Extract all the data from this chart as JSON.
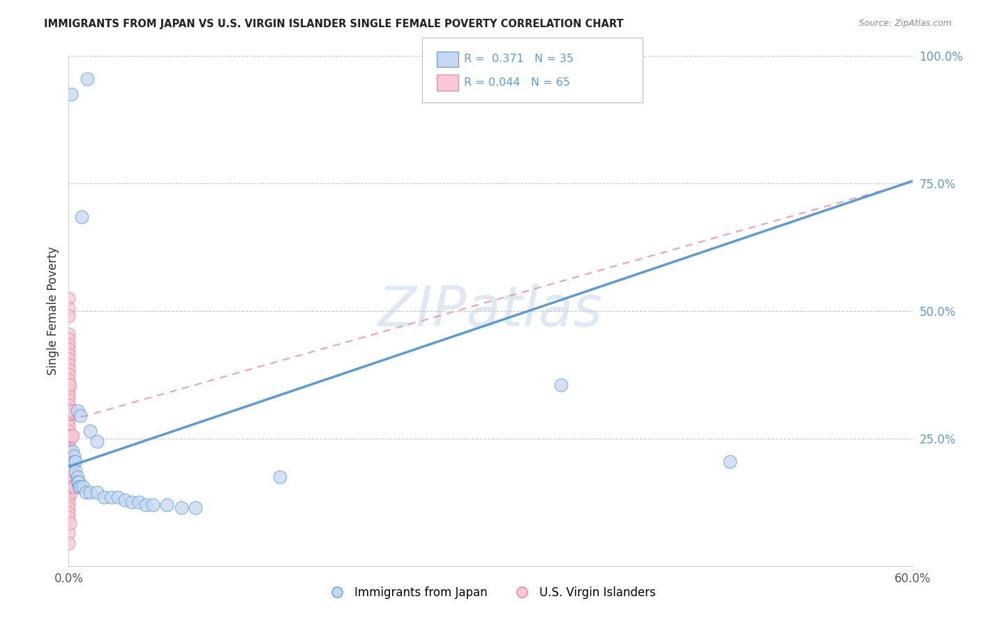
{
  "title": "IMMIGRANTS FROM JAPAN VS U.S. VIRGIN ISLANDER SINGLE FEMALE POVERTY CORRELATION CHART",
  "source": "Source: ZipAtlas.com",
  "ylabel": "Single Female Poverty",
  "xlim": [
    0.0,
    0.6
  ],
  "ylim": [
    0.0,
    1.0
  ],
  "watermark": "ZIPatlas",
  "blue_color": "#aac4e2",
  "pink_color": "#f5a8bc",
  "blue_fill": "#c5d8ef",
  "pink_fill": "#fac8d5",
  "blue_line_color": "#5b9bd5",
  "pink_line_color": "#e8809a",
  "grid_color": "#c8c8c8",
  "background_color": "#ffffff",
  "right_tick_color": "#5b9bd5",
  "blue_slope": 0.933,
  "blue_intercept": 0.195,
  "pink_slope": 0.78,
  "pink_intercept": 0.285,
  "japan_points": [
    [
      0.002,
      0.925
    ],
    [
      0.013,
      0.955
    ],
    [
      0.009,
      0.685
    ],
    [
      0.006,
      0.305
    ],
    [
      0.008,
      0.295
    ],
    [
      0.015,
      0.265
    ],
    [
      0.02,
      0.245
    ],
    [
      0.003,
      0.225
    ],
    [
      0.004,
      0.215
    ],
    [
      0.004,
      0.205
    ],
    [
      0.005,
      0.205
    ],
    [
      0.005,
      0.185
    ],
    [
      0.006,
      0.175
    ],
    [
      0.006,
      0.165
    ],
    [
      0.007,
      0.165
    ],
    [
      0.007,
      0.155
    ],
    [
      0.008,
      0.155
    ],
    [
      0.01,
      0.155
    ],
    [
      0.012,
      0.145
    ],
    [
      0.015,
      0.145
    ],
    [
      0.02,
      0.145
    ],
    [
      0.025,
      0.135
    ],
    [
      0.03,
      0.135
    ],
    [
      0.035,
      0.135
    ],
    [
      0.04,
      0.13
    ],
    [
      0.045,
      0.125
    ],
    [
      0.05,
      0.125
    ],
    [
      0.055,
      0.12
    ],
    [
      0.06,
      0.12
    ],
    [
      0.07,
      0.12
    ],
    [
      0.08,
      0.115
    ],
    [
      0.09,
      0.115
    ],
    [
      0.47,
      0.205
    ],
    [
      0.35,
      0.355
    ],
    [
      0.15,
      0.175
    ]
  ],
  "virgin_points": [
    [
      0.0,
      0.525
    ],
    [
      0.0,
      0.505
    ],
    [
      0.0,
      0.49
    ],
    [
      0.0,
      0.455
    ],
    [
      0.0,
      0.445
    ],
    [
      0.0,
      0.435
    ],
    [
      0.0,
      0.425
    ],
    [
      0.0,
      0.415
    ],
    [
      0.0,
      0.405
    ],
    [
      0.0,
      0.395
    ],
    [
      0.0,
      0.385
    ],
    [
      0.0,
      0.375
    ],
    [
      0.0,
      0.365
    ],
    [
      0.0,
      0.355
    ],
    [
      0.0,
      0.345
    ],
    [
      0.0,
      0.335
    ],
    [
      0.0,
      0.325
    ],
    [
      0.0,
      0.315
    ],
    [
      0.0,
      0.305
    ],
    [
      0.0,
      0.295
    ],
    [
      0.0,
      0.285
    ],
    [
      0.0,
      0.275
    ],
    [
      0.0,
      0.265
    ],
    [
      0.0,
      0.255
    ],
    [
      0.0,
      0.245
    ],
    [
      0.0,
      0.235
    ],
    [
      0.0,
      0.225
    ],
    [
      0.0,
      0.215
    ],
    [
      0.0,
      0.205
    ],
    [
      0.0,
      0.195
    ],
    [
      0.0,
      0.185
    ],
    [
      0.0,
      0.175
    ],
    [
      0.0,
      0.165
    ],
    [
      0.0,
      0.155
    ],
    [
      0.0,
      0.145
    ],
    [
      0.0,
      0.135
    ],
    [
      0.0,
      0.125
    ],
    [
      0.0,
      0.115
    ],
    [
      0.0,
      0.105
    ],
    [
      0.0,
      0.095
    ],
    [
      0.001,
      0.355
    ],
    [
      0.001,
      0.305
    ],
    [
      0.001,
      0.255
    ],
    [
      0.001,
      0.225
    ],
    [
      0.001,
      0.205
    ],
    [
      0.001,
      0.185
    ],
    [
      0.001,
      0.165
    ],
    [
      0.001,
      0.155
    ],
    [
      0.002,
      0.305
    ],
    [
      0.002,
      0.255
    ],
    [
      0.002,
      0.225
    ],
    [
      0.002,
      0.205
    ],
    [
      0.002,
      0.185
    ],
    [
      0.002,
      0.165
    ],
    [
      0.002,
      0.155
    ],
    [
      0.002,
      0.145
    ],
    [
      0.003,
      0.255
    ],
    [
      0.003,
      0.205
    ],
    [
      0.003,
      0.185
    ],
    [
      0.003,
      0.165
    ],
    [
      0.003,
      0.155
    ],
    [
      0.004,
      0.155
    ],
    [
      0.0,
      0.065
    ],
    [
      0.0,
      0.045
    ],
    [
      0.001,
      0.085
    ]
  ]
}
